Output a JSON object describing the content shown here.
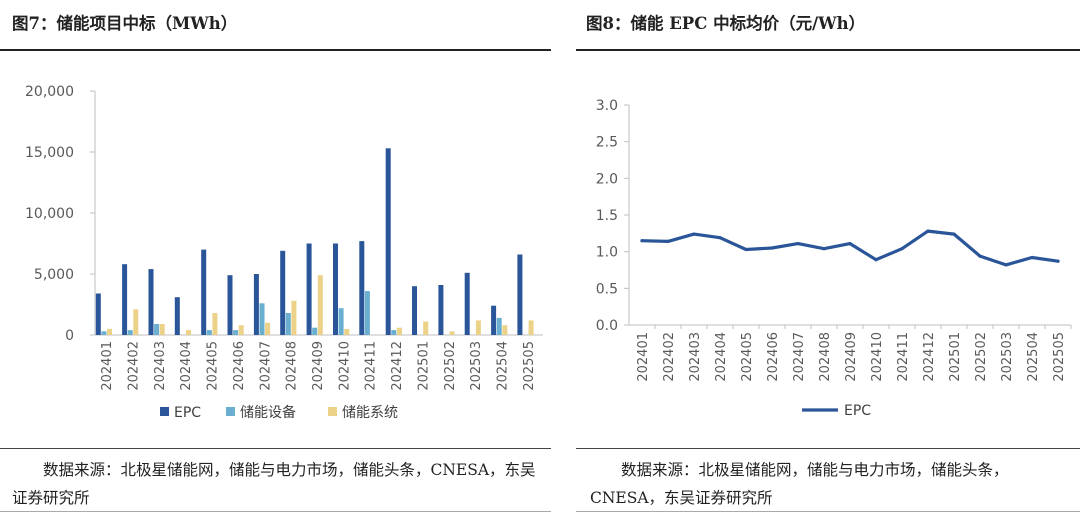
{
  "left_panel": {
    "title": "图7：储能项目中标（MWh）",
    "source": "数据来源：北极星储能网，储能与电力市场，储能头条，CNESA，东吴证券研究所"
  },
  "right_panel": {
    "title": "图8：储能 EPC 中标均价（元/Wh）",
    "source": "数据来源：北极星储能网，储能与电力市场，储能头条，CNESA，东吴证券研究所"
  },
  "chart_data": [
    {
      "type": "bar",
      "title": "储能项目中标（MWh）",
      "categories": [
        "202401",
        "202402",
        "202403",
        "202404",
        "202405",
        "202406",
        "202407",
        "202408",
        "202409",
        "202410",
        "202411",
        "202412",
        "202501",
        "202502",
        "202503",
        "202504",
        "202505"
      ],
      "series": [
        {
          "name": "EPC",
          "color": "#2a5599",
          "values": [
            3400,
            5800,
            5400,
            3100,
            7000,
            4900,
            5000,
            6900,
            7500,
            7500,
            7700,
            15300,
            4000,
            4100,
            5100,
            2400,
            6600
          ]
        },
        {
          "name": "储能设备",
          "color": "#6aafd0",
          "values": [
            300,
            400,
            900,
            0,
            400,
            400,
            2600,
            1800,
            600,
            2200,
            3600,
            400,
            0,
            0,
            0,
            1400,
            0
          ]
        },
        {
          "name": "储能系统",
          "color": "#ecd189",
          "values": [
            500,
            2100,
            900,
            400,
            1800,
            800,
            1000,
            2800,
            4900,
            500,
            0,
            600,
            1100,
            300,
            1200,
            800,
            1200
          ]
        }
      ],
      "yticks": [
        "0",
        "5,000",
        "10,000",
        "15,000",
        "20,000"
      ],
      "ylim": [
        0,
        20000
      ],
      "legend": "bottom"
    },
    {
      "type": "line",
      "title": "储能 EPC 中标均价（元/Wh）",
      "categories": [
        "202401",
        "202402",
        "202403",
        "202404",
        "202405",
        "202406",
        "202407",
        "202408",
        "202409",
        "202410",
        "202411",
        "202412",
        "202501",
        "202502",
        "202503",
        "202504",
        "202505"
      ],
      "series": [
        {
          "name": "EPC",
          "color": "#2a5599",
          "values": [
            1.15,
            1.14,
            1.24,
            1.19,
            1.03,
            1.05,
            1.11,
            1.04,
            1.11,
            0.89,
            1.04,
            1.28,
            1.24,
            0.94,
            0.82,
            0.92,
            0.87
          ]
        }
      ],
      "yticks": [
        "0.0",
        "0.5",
        "1.0",
        "1.5",
        "2.0",
        "2.5",
        "3.0"
      ],
      "ylim": [
        0,
        3
      ],
      "legend": "bottom"
    }
  ]
}
